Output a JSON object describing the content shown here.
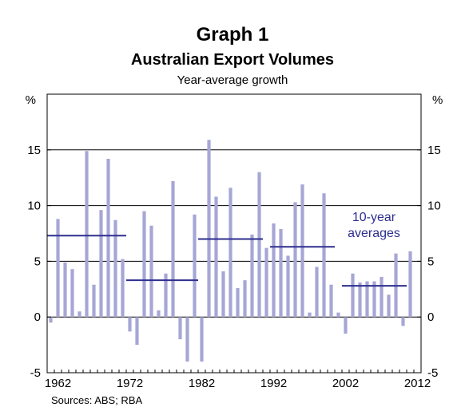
{
  "chart_data": {
    "type": "bar",
    "title": "Graph 1",
    "subtitle": "Australian Export Volumes",
    "subsubtitle": "Year-average growth",
    "ylabel_left": "%",
    "ylabel_right": "%",
    "ylim": [
      -5,
      20
    ],
    "yticks": [
      -5,
      0,
      5,
      10,
      15
    ],
    "xticks": [
      1962,
      1972,
      1982,
      1992,
      2002,
      2012
    ],
    "x_range": [
      1961,
      2013
    ],
    "grid": "horizontal",
    "bar_color": "#a6a6d6",
    "avg_color": "#2e2e8f",
    "years": [
      1961,
      1962,
      1963,
      1964,
      1965,
      1966,
      1967,
      1968,
      1969,
      1970,
      1971,
      1972,
      1973,
      1974,
      1975,
      1976,
      1977,
      1978,
      1979,
      1980,
      1981,
      1982,
      1983,
      1984,
      1985,
      1986,
      1987,
      1988,
      1989,
      1990,
      1991,
      1992,
      1993,
      1994,
      1995,
      1996,
      1997,
      1998,
      1999,
      2000,
      2001,
      2002,
      2003,
      2004,
      2005,
      2006,
      2007,
      2008,
      2009,
      2010,
      2011,
      2012
    ],
    "values": [
      -0.5,
      8.8,
      4.9,
      4.3,
      0.5,
      14.9,
      2.9,
      9.6,
      14.2,
      8.7,
      5.2,
      -1.3,
      -2.5,
      9.5,
      8.2,
      0.6,
      3.9,
      12.2,
      -2.0,
      -4.0,
      9.2,
      -4.0,
      15.9,
      10.8,
      4.1,
      11.6,
      2.6,
      3.3,
      7.4,
      13.0,
      6.2,
      8.4,
      7.9,
      5.5,
      10.3,
      11.9,
      0.4,
      4.5,
      11.1,
      2.9,
      0.4,
      -1.5,
      3.9,
      3.1,
      3.2,
      3.2,
      3.6,
      2.0,
      5.7,
      -0.8,
      5.9,
      0
    ],
    "averages": [
      {
        "from": 1961,
        "to": 1972,
        "value": 7.3
      },
      {
        "from": 1972,
        "to": 1982,
        "value": 3.3
      },
      {
        "from": 1982,
        "to": 1991,
        "value": 7.0
      },
      {
        "from": 1992,
        "to": 2001,
        "value": 6.3
      },
      {
        "from": 2002,
        "to": 2011,
        "value": 2.8
      }
    ],
    "annotation": [
      "10-year",
      "averages"
    ],
    "source": "Sources: ABS; RBA"
  }
}
